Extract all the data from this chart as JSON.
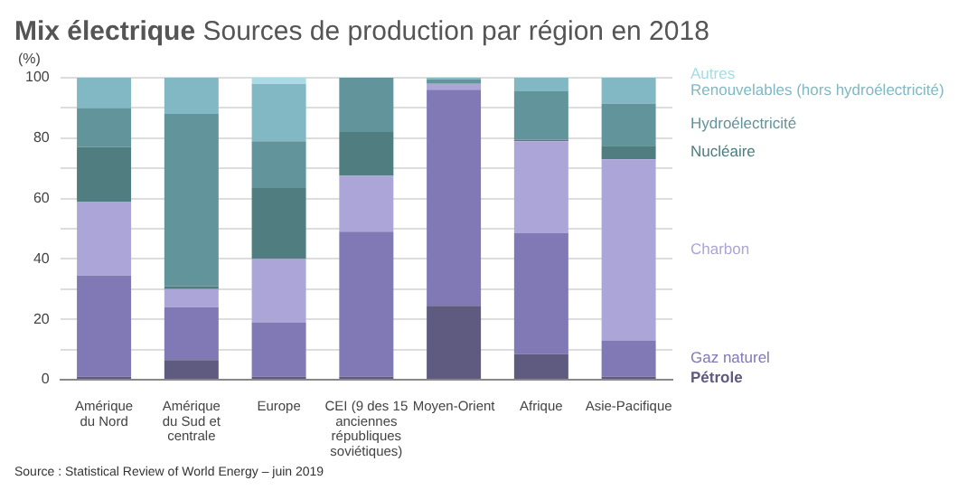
{
  "chart_data": {
    "type": "bar",
    "stacked": true,
    "title": "Mix électrique",
    "subtitle": "Sources de production par région en 2018",
    "ylabel": "(%)",
    "categories": [
      "Amérique\ndu Nord",
      "Amérique\ndu Sud et\ncentrale",
      "Europe",
      "CEI (9 des 15\nanciennes\nrépubliques\nsoviétiques)",
      "Moyen-Orient",
      "Afrique",
      "Asie-Pacifique"
    ],
    "series": [
      {
        "name": "Pétrole",
        "color": "#5e5a80",
        "values": [
          1,
          6.5,
          1,
          1,
          24.5,
          8.5,
          1
        ]
      },
      {
        "name": "Gaz naturel",
        "color": "#8079b5",
        "values": [
          33.5,
          17.5,
          18,
          48,
          71.5,
          40,
          12
        ]
      },
      {
        "name": "Charbon",
        "color": "#aca6d8",
        "values": [
          24.5,
          6,
          21,
          18.5,
          2,
          30.5,
          60
        ]
      },
      {
        "name": "Nucléaire",
        "color": "#4f7d80",
        "values": [
          18,
          1,
          23.5,
          14.5,
          0,
          0.5,
          4.5
        ]
      },
      {
        "name": "Hydroélectricité",
        "color": "#62949b",
        "values": [
          13,
          57,
          15.5,
          18,
          1.5,
          16,
          14
        ]
      },
      {
        "name": "Renouvelables (hors hydroélectricité)",
        "color": "#82b8c4",
        "values": [
          10,
          12,
          19,
          0,
          0.5,
          4.5,
          8.5
        ]
      },
      {
        "name": "Autres",
        "color": "#a8dbe6",
        "values": [
          0,
          0,
          2,
          0,
          0,
          0,
          0
        ]
      }
    ],
    "ylim": [
      0,
      100
    ],
    "yticks": [
      0,
      {
        "value": 10,
        "label": null
      },
      20,
      {
        "value": 30,
        "label": null
      },
      40,
      {
        "value": 50,
        "label": null
      },
      60,
      {
        "value": 70,
        "label": null
      },
      80,
      {
        "value": 90,
        "label": null
      },
      100
    ],
    "grid": "y",
    "legend": "right",
    "annotations": [
      "Source : Statistical Review of World Energy – juin 2019"
    ]
  }
}
